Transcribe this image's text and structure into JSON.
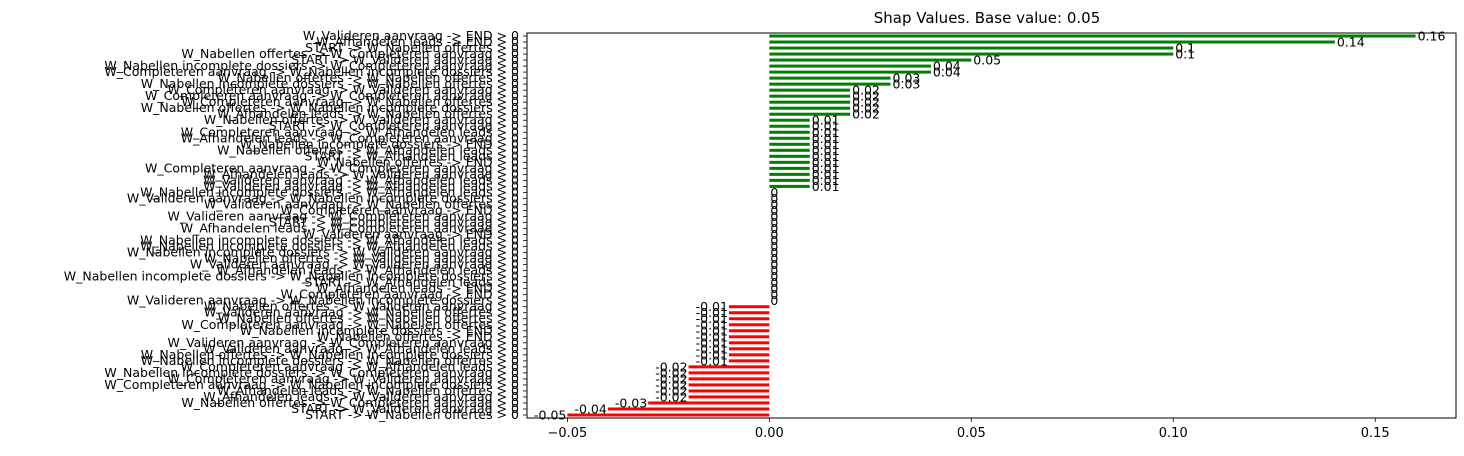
{
  "chart_data": {
    "type": "bar",
    "orientation": "horizontal",
    "title": "Shap Values. Base value: 0.05",
    "xlabel": "",
    "ylabel": "",
    "xlim": [
      -0.06,
      0.17
    ],
    "xticks": [
      -0.05,
      0.0,
      0.05,
      0.1,
      0.15
    ],
    "xtick_labels": [
      "−0.05",
      "0.00",
      "0.05",
      "0.10",
      "0.15"
    ],
    "grid": false,
    "colors": {
      "positive": "#008000",
      "negative": "#ff0000"
    },
    "bars": [
      {
        "label": "W_Valideren aanvraag -> END > 0",
        "value": 0.16,
        "value_label": "0.16"
      },
      {
        "label": "W_Afhandelen leads -> END > 0",
        "value": 0.14,
        "value_label": "0.14"
      },
      {
        "label": "START -> W_Nabellen offertes > 0",
        "value": 0.1,
        "value_label": "0.1"
      },
      {
        "label": "W_Nabellen offertes -> W_Completeren aanvraag > 0",
        "value": 0.1,
        "value_label": "0.1"
      },
      {
        "label": "START -> W_Valideren aanvraag > 0",
        "value": 0.05,
        "value_label": "0.05"
      },
      {
        "label": "W_Nabellen incomplete dossiers -> W_Completeren aanvraag > 0",
        "value": 0.04,
        "value_label": "0.04"
      },
      {
        "label": "W_Completeren aanvraag -> W_Nabellen incomplete dossiers > 0",
        "value": 0.04,
        "value_label": "0.04"
      },
      {
        "label": "W_Nabellen offertes -> W_Nabellen offertes > 0",
        "value": 0.03,
        "value_label": "0.03"
      },
      {
        "label": "W_Nabellen incomplete dossiers -> W_Nabellen offertes > 0",
        "value": 0.03,
        "value_label": "0.03"
      },
      {
        "label": "W_Completeren aanvraag -> W_Valideren aanvraag > 0",
        "value": 0.02,
        "value_label": "0.02"
      },
      {
        "label": "W_Completeren aanvraag -> W_Completeren aanvraag > 0",
        "value": 0.02,
        "value_label": "0.02"
      },
      {
        "label": "W_Completeren aanvraag -> W_Nabellen offertes > 0",
        "value": 0.02,
        "value_label": "0.02"
      },
      {
        "label": "W_Nabellen offertes -> W_Nabellen incomplete dossiers > 0",
        "value": 0.02,
        "value_label": "0.02"
      },
      {
        "label": "W_Afhandelen leads -> W_Nabellen offertes > 0",
        "value": 0.02,
        "value_label": "0.02"
      },
      {
        "label": "W_Nabellen offertes -> W_Valideren aanvraag > 0",
        "value": 0.01,
        "value_label": "0.01"
      },
      {
        "label": "START -> W_Completeren aanvraag > 0",
        "value": 0.01,
        "value_label": "0.01"
      },
      {
        "label": "W_Completeren aanvraag -> W_Afhandelen leads > 0",
        "value": 0.01,
        "value_label": "0.01"
      },
      {
        "label": "W_Afhandelen leads -> W_Completeren aanvraag > 0",
        "value": 0.01,
        "value_label": "0.01"
      },
      {
        "label": "W_Nabellen incomplete dossiers -> END > 0",
        "value": 0.01,
        "value_label": "0.01"
      },
      {
        "label": "W_Nabellen offertes -> W_Afhandelen leads > 0",
        "value": 0.01,
        "value_label": "0.01"
      },
      {
        "label": "START -> W_Afhandelen leads > 0",
        "value": 0.01,
        "value_label": "0.01"
      },
      {
        "label": "W_Nabellen offertes -> END > 0",
        "value": 0.01,
        "value_label": "0.01"
      },
      {
        "label": "W_Completeren aanvraag -> W_Completeren aanvraag > 0",
        "value": 0.01,
        "value_label": "0.01"
      },
      {
        "label": "W_Afhandelen leads -> W_Valideren aanvraag > 0",
        "value": 0.01,
        "value_label": "0.01"
      },
      {
        "label": "W_Valideren aanvraag -> W_Afhandelen leads > 0",
        "value": 0.01,
        "value_label": "0.01"
      },
      {
        "label": "W_Valideren aanvraag -> W_Afhandelen leads > 0",
        "value": 0.01,
        "value_label": "0.01"
      },
      {
        "label": "W_Nabellen incomplete dossiers -> W_Afhandelen leads > 0",
        "value": 0.0,
        "value_label": "0"
      },
      {
        "label": "W_Valideren aanvraag -> W_Nabellen incomplete dossiers > 0",
        "value": 0.0,
        "value_label": "0"
      },
      {
        "label": "W_Valideren aanvraag -> W_Nabellen offertes > 0",
        "value": 0.0,
        "value_label": "0"
      },
      {
        "label": "W_Completeren aanvraag -> END > 0",
        "value": 0.0,
        "value_label": "0"
      },
      {
        "label": "W_Valideren aanvraag -> W_Completeren aanvraag > 0",
        "value": 0.0,
        "value_label": "0"
      },
      {
        "label": "START -> W_Completeren aanvraag > 0",
        "value": 0.0,
        "value_label": "0"
      },
      {
        "label": "W_Afhandelen leads -> W_Completeren aanvraag > 0",
        "value": 0.0,
        "value_label": "0"
      },
      {
        "label": "W_Valideren aanvraag -> END > 0",
        "value": 0.0,
        "value_label": "0"
      },
      {
        "label": "W_Nabellen incomplete dossiers -> W_Afhandelen leads > 0",
        "value": 0.0,
        "value_label": "0"
      },
      {
        "label": "W_Nabellen incomplete dossiers -> W_Afhandelen leads > 0",
        "value": 0.0,
        "value_label": "0"
      },
      {
        "label": "W_Nabellen incomplete dossiers -> W_Valideren aanvraag > 0",
        "value": 0.0,
        "value_label": "0"
      },
      {
        "label": "W_Nabellen offertes -> W_Valideren aanvraag > 0",
        "value": 0.0,
        "value_label": "0"
      },
      {
        "label": "W_Valideren aanvraag -> W_Valideren aanvraag > 0",
        "value": 0.0,
        "value_label": "0"
      },
      {
        "label": "W_Afhandelen leads -> W_Afhandelen leads > 0",
        "value": 0.0,
        "value_label": "0"
      },
      {
        "label": "W_Nabellen incomplete dossiers -> W_Nabellen incomplete dossiers > 0",
        "value": 0.0,
        "value_label": "0"
      },
      {
        "label": "START -> W_Afhandelen leads > 0",
        "value": 0.0,
        "value_label": "0"
      },
      {
        "label": "W_Afhandelen leads -> END > 0",
        "value": 0.0,
        "value_label": "0"
      },
      {
        "label": "W_Completeren aanvraag -> END > 0",
        "value": 0.0,
        "value_label": "0"
      },
      {
        "label": "W_Valideren aanvraag -> W_Nabellen incomplete dossiers > 0",
        "value": 0.0,
        "value_label": "0"
      },
      {
        "label": "W_Nabellen offertes -> W_Valideren aanvraag > 0",
        "value": -0.01,
        "value_label": "-0.01"
      },
      {
        "label": "W_Valideren aanvraag -> W_Nabellen offertes > 0",
        "value": -0.01,
        "value_label": "-0.01"
      },
      {
        "label": "W_Nabellen offertes -> W_Nabellen offertes > 0",
        "value": -0.01,
        "value_label": "-0.01"
      },
      {
        "label": "W_Completeren aanvraag -> W_Nabellen offertes > 0",
        "value": -0.01,
        "value_label": "-0.01"
      },
      {
        "label": "W_Nabellen incomplete dossiers -> END > 0",
        "value": -0.01,
        "value_label": "-0.01"
      },
      {
        "label": "W_Nabellen offertes -> END > 0",
        "value": -0.01,
        "value_label": "-0.01"
      },
      {
        "label": "W_Valideren aanvraag -> W_Completeren aanvraag > 0",
        "value": -0.01,
        "value_label": "-0.01"
      },
      {
        "label": "W_Valideren aanvraag -> W_Afhandelen leads > 0",
        "value": -0.01,
        "value_label": "-0.01"
      },
      {
        "label": "W_Nabellen offertes -> W_Nabellen incomplete dossiers > 0",
        "value": -0.01,
        "value_label": "-0.01"
      },
      {
        "label": "W_Nabellen incomplete dossiers -> W_Nabellen offertes > 0",
        "value": -0.01,
        "value_label": "-0.01"
      },
      {
        "label": "W_Completeren aanvraag -> W_Afhandelen leads > 0",
        "value": -0.02,
        "value_label": "-0.02"
      },
      {
        "label": "W_Nabellen incomplete dossiers -> W_Completeren aanvraag > 0",
        "value": -0.02,
        "value_label": "-0.02"
      },
      {
        "label": "W_Completeren aanvraag -> W_Valideren aanvraag > 0",
        "value": -0.02,
        "value_label": "-0.02"
      },
      {
        "label": "W_Completeren aanvraag -> W_Nabellen incomplete dossiers > 0",
        "value": -0.02,
        "value_label": "-0.02"
      },
      {
        "label": "W_Afhandelen leads -> W_Nabellen offertes > 0",
        "value": -0.02,
        "value_label": "-0.02"
      },
      {
        "label": "W_Afhandelen leads -> W_Valideren aanvraag > 0",
        "value": -0.02,
        "value_label": "-0.02"
      },
      {
        "label": "W_Nabellen offertes -> W_Completeren aanvraag > 0",
        "value": -0.03,
        "value_label": "-0.03"
      },
      {
        "label": "START -> W_Valideren aanvraag > 0",
        "value": -0.04,
        "value_label": "-0.04"
      },
      {
        "label": "START -> W_Nabellen offertes > 0",
        "value": -0.05,
        "value_label": "-0.05"
      }
    ]
  }
}
